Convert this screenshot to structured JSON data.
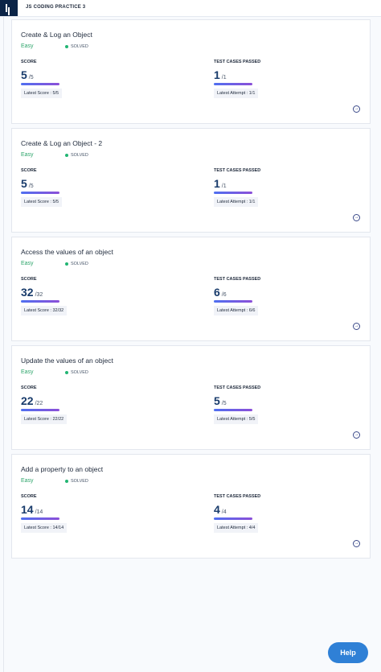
{
  "header": {
    "title": "JS CODING PRACTICE 3"
  },
  "problems": [
    {
      "title": "Create & Log an Object",
      "difficulty": "Easy",
      "status": "SOLVED",
      "score_label": "SCORE",
      "score": 5,
      "score_total": "/5",
      "latest_score": "Latest Score : 5/5",
      "tests_label": "TEST CASES PASSED",
      "tests_passed": 1,
      "tests_total": "/1",
      "latest_attempt": "Latest Attempt : 1/1"
    },
    {
      "title": "Create & Log an Object - 2",
      "difficulty": "Easy",
      "status": "SOLVED",
      "score_label": "SCORE",
      "score": 5,
      "score_total": "/5",
      "latest_score": "Latest Score : 5/5",
      "tests_label": "TEST CASES PASSED",
      "tests_passed": 1,
      "tests_total": "/1",
      "latest_attempt": "Latest Attempt : 1/1"
    },
    {
      "title": "Access the values of an object",
      "difficulty": "Easy",
      "status": "SOLVED",
      "score_label": "SCORE",
      "score": 32,
      "score_total": "/32",
      "latest_score": "Latest Score : 32/32",
      "tests_label": "TEST CASES PASSED",
      "tests_passed": 6,
      "tests_total": "/6",
      "latest_attempt": "Latest Attempt : 6/6"
    },
    {
      "title": "Update the values of an object",
      "difficulty": "Easy",
      "status": "SOLVED",
      "score_label": "SCORE",
      "score": 22,
      "score_total": "/22",
      "latest_score": "Latest Score : 22/22",
      "tests_label": "TEST CASES PASSED",
      "tests_passed": 5,
      "tests_total": "/5",
      "latest_attempt": "Latest Attempt : 5/5"
    },
    {
      "title": "Add a property to an object",
      "difficulty": "Easy",
      "status": "SOLVED",
      "score_label": "SCORE",
      "score": 14,
      "score_total": "/14",
      "latest_score": "Latest Score : 14/14",
      "tests_label": "TEST CASES PASSED",
      "tests_passed": 4,
      "tests_total": "/4",
      "latest_attempt": "Latest Attempt : 4/4"
    }
  ],
  "help_button": {
    "label": "Help"
  }
}
